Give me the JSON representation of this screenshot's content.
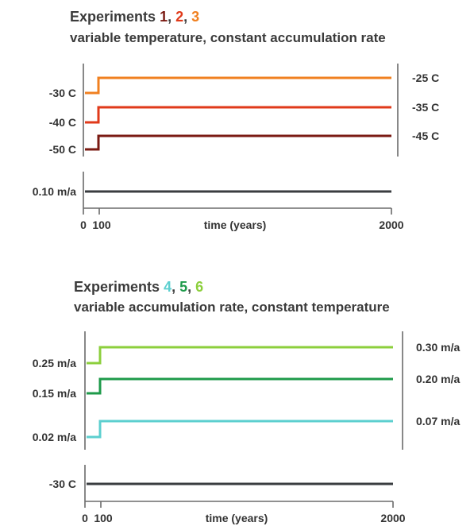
{
  "panels": [
    {
      "title_word": "Experiments",
      "exp_numbers": [
        {
          "label": "1",
          "color": "#7a1a12"
        },
        {
          "label": "2",
          "color": "#e03a1a"
        },
        {
          "label": "3",
          "color": "#f08020"
        }
      ],
      "subtitle": "variable temperature, constant accumulation rate",
      "series": [
        {
          "left_label": "-30 C",
          "right_label": "-25 C",
          "color": "#f08020"
        },
        {
          "left_label": "-40 C",
          "right_label": "-35 C",
          "color": "#e03a1a"
        },
        {
          "left_label": "-50 C",
          "right_label": "-45 C",
          "color": "#7a1a12"
        }
      ],
      "constant": {
        "label": "0.10 m/a",
        "color": "#3a3d40"
      },
      "x_ticks": [
        "0",
        "100",
        "2000"
      ],
      "x_label": "time (years)"
    },
    {
      "title_word": "Experiments",
      "exp_numbers": [
        {
          "label": "4",
          "color": "#5ccfcf"
        },
        {
          "label": "5",
          "color": "#1e9a4a"
        },
        {
          "label": "6",
          "color": "#8ccf3c"
        }
      ],
      "subtitle": "variable accumulation rate, constant temperature",
      "series": [
        {
          "left_label": "0.25 m/a",
          "right_label": "0.30 m/a",
          "color": "#8ccf3c"
        },
        {
          "left_label": "0.15 m/a",
          "right_label": "0.20 m/a",
          "color": "#1e9a4a"
        },
        {
          "left_label": "0.02 m/a",
          "right_label": "0.07 m/a",
          "color": "#5ccfcf"
        }
      ],
      "constant": {
        "label": "-30 C",
        "color": "#3a3d40"
      },
      "x_ticks": [
        "0",
        "100",
        "2000"
      ],
      "x_label": "time (years)"
    }
  ]
}
